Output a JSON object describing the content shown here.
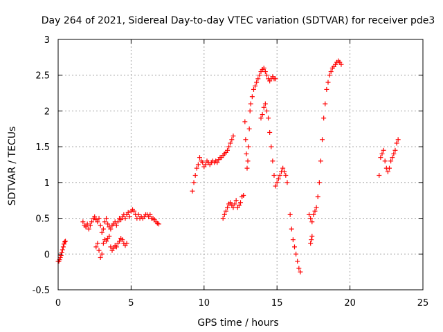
{
  "chart_data": {
    "type": "scatter",
    "title": "Day 264 of 2021, Sidereal Day-to-day VTEC variation (SDTVAR) for receiver pde3",
    "xlabel": "GPS time / hours",
    "ylabel": "SDTVAR / TECUs",
    "xlim": [
      0,
      25
    ],
    "ylim": [
      -0.5,
      3
    ],
    "xticks": [
      "0",
      "5",
      "10",
      "15",
      "20",
      "25"
    ],
    "xtick_values": [
      0,
      5,
      10,
      15,
      20,
      25
    ],
    "yticks": [
      "-0.5",
      "0",
      "0.5",
      "1",
      "1.5",
      "2",
      "2.5",
      "3"
    ],
    "ytick_values": [
      -0.5,
      0,
      0.5,
      1,
      1.5,
      2,
      2.5,
      3
    ],
    "grid": true,
    "marker": "+",
    "color": "#ff0000",
    "series": [
      {
        "name": "seg1",
        "x": [
          0.0,
          0.05,
          0.1,
          0.15,
          0.2,
          0.25,
          0.3,
          0.35,
          0.4,
          0.45,
          0.5
        ],
        "y": [
          -0.1,
          -0.1,
          -0.08,
          -0.05,
          -0.02,
          0.02,
          0.06,
          0.1,
          0.14,
          0.17,
          0.18
        ]
      },
      {
        "name": "seg2",
        "x": [
          1.7,
          1.8,
          1.9,
          2.0,
          2.1,
          2.2,
          2.3,
          2.4,
          2.5,
          2.6,
          2.7,
          2.8,
          2.9,
          3.0,
          3.1,
          3.2,
          3.3,
          3.4,
          3.5,
          3.6,
          3.7,
          3.8,
          3.9,
          4.0,
          4.1,
          4.2,
          4.3,
          4.4,
          4.5,
          4.6,
          4.7,
          4.8,
          4.9,
          5.0,
          5.1,
          5.2,
          5.3,
          5.4,
          5.5,
          5.6,
          5.7,
          5.8,
          5.9,
          6.0,
          6.1,
          6.2,
          6.3,
          6.4,
          6.5,
          6.6,
          6.7,
          6.8,
          6.9
        ],
        "y": [
          0.45,
          0.4,
          0.38,
          0.42,
          0.35,
          0.4,
          0.45,
          0.5,
          0.52,
          0.48,
          0.45,
          0.5,
          0.4,
          0.3,
          0.35,
          0.45,
          0.5,
          0.42,
          0.38,
          0.35,
          0.4,
          0.42,
          0.45,
          0.4,
          0.45,
          0.5,
          0.48,
          0.52,
          0.55,
          0.5,
          0.55,
          0.58,
          0.52,
          0.6,
          0.62,
          0.6,
          0.55,
          0.5,
          0.55,
          0.5,
          0.52,
          0.5,
          0.52,
          0.55,
          0.55,
          0.52,
          0.55,
          0.5,
          0.5,
          0.48,
          0.45,
          0.43,
          0.42
        ]
      },
      {
        "name": "seg3",
        "x": [
          2.6,
          2.7,
          2.8,
          2.9,
          3.0,
          3.1,
          3.2,
          3.3,
          3.4,
          3.5,
          3.6,
          3.7,
          3.8,
          3.9,
          4.0,
          4.1,
          4.2,
          4.3,
          4.4,
          4.5,
          4.6,
          4.7
        ],
        "y": [
          0.1,
          0.15,
          0.05,
          -0.05,
          0.0,
          0.15,
          0.2,
          0.18,
          0.22,
          0.25,
          0.1,
          0.05,
          0.08,
          0.12,
          0.1,
          0.15,
          0.18,
          0.22,
          0.2,
          0.15,
          0.12,
          0.15
        ]
      },
      {
        "name": "seg4",
        "x": [
          9.2,
          9.3,
          9.4,
          9.5,
          9.6,
          9.7,
          9.8,
          9.9,
          10.0,
          10.1,
          10.2,
          10.3,
          10.4,
          10.5,
          10.6,
          10.7,
          10.8,
          10.9,
          11.0,
          11.1,
          11.2,
          11.3,
          11.4,
          11.5,
          11.6,
          11.7,
          11.8,
          11.9,
          12.0
        ],
        "y": [
          0.88,
          1.0,
          1.1,
          1.2,
          1.25,
          1.35,
          1.3,
          1.28,
          1.22,
          1.25,
          1.3,
          1.28,
          1.25,
          1.28,
          1.3,
          1.28,
          1.3,
          1.28,
          1.32,
          1.35,
          1.35,
          1.38,
          1.4,
          1.42,
          1.45,
          1.5,
          1.55,
          1.6,
          1.65
        ]
      },
      {
        "name": "seg5",
        "x": [
          11.3,
          11.4,
          11.5,
          11.6,
          11.7,
          11.8,
          11.9,
          12.0,
          12.1,
          12.2,
          12.3,
          12.4,
          12.5,
          12.6,
          12.7
        ],
        "y": [
          0.5,
          0.55,
          0.6,
          0.65,
          0.7,
          0.72,
          0.68,
          0.65,
          0.7,
          0.75,
          0.65,
          0.68,
          0.72,
          0.8,
          0.82
        ]
      },
      {
        "name": "seg6",
        "x": [
          12.8,
          12.85,
          12.9,
          12.95,
          13.0,
          13.05,
          13.1,
          13.15,
          13.2,
          13.3,
          13.4,
          13.5,
          13.6,
          13.7,
          13.8,
          13.9,
          14.0,
          14.1,
          14.2,
          14.3,
          14.4,
          14.5,
          14.6,
          14.7,
          14.8,
          14.9
        ],
        "y": [
          1.85,
          1.6,
          1.4,
          1.2,
          1.3,
          1.5,
          1.75,
          2.0,
          2.1,
          2.2,
          2.3,
          2.35,
          2.4,
          2.45,
          2.5,
          2.55,
          2.58,
          2.6,
          2.55,
          2.5,
          2.45,
          2.42,
          2.45,
          2.48,
          2.45,
          2.45
        ]
      },
      {
        "name": "seg7",
        "x": [
          13.9,
          14.0,
          14.1,
          14.2,
          14.3,
          14.4,
          14.5,
          14.6,
          14.7,
          14.8,
          14.9,
          15.0,
          15.1,
          15.2,
          15.3,
          15.4,
          15.5,
          15.6,
          15.7
        ],
        "y": [
          1.9,
          1.95,
          2.05,
          2.1,
          2.0,
          1.9,
          1.7,
          1.5,
          1.3,
          1.1,
          0.95,
          1.0,
          1.05,
          1.1,
          1.15,
          1.2,
          1.15,
          1.1,
          1.0
        ]
      },
      {
        "name": "seg8",
        "x": [
          15.9,
          16.0,
          16.1,
          16.2,
          16.3,
          16.4,
          16.5,
          16.6
        ],
        "y": [
          0.55,
          0.35,
          0.2,
          0.1,
          0.0,
          -0.1,
          -0.2,
          -0.25
        ]
      },
      {
        "name": "seg9",
        "x": [
          17.2,
          17.3,
          17.4,
          17.5,
          17.6,
          17.7,
          17.8,
          17.9,
          18.0,
          18.1,
          18.2,
          18.3,
          18.4,
          18.5,
          18.6,
          18.7,
          18.8,
          18.9,
          19.0,
          19.1,
          19.2,
          19.3,
          19.4
        ],
        "y": [
          0.55,
          0.5,
          0.45,
          0.55,
          0.6,
          0.65,
          0.8,
          1.0,
          1.3,
          1.6,
          1.9,
          2.1,
          2.3,
          2.4,
          2.5,
          2.55,
          2.6,
          2.62,
          2.65,
          2.68,
          2.7,
          2.68,
          2.65
        ]
      },
      {
        "name": "seg10",
        "x": [
          17.3,
          17.35,
          17.4
        ],
        "y": [
          0.15,
          0.2,
          0.25
        ]
      },
      {
        "name": "seg11",
        "x": [
          22.0,
          22.1,
          22.2,
          22.3,
          22.4,
          22.5,
          22.6,
          22.7,
          22.8,
          22.9,
          23.0,
          23.1,
          23.2,
          23.3
        ],
        "y": [
          1.1,
          1.35,
          1.4,
          1.45,
          1.3,
          1.2,
          1.15,
          1.2,
          1.3,
          1.35,
          1.4,
          1.45,
          1.55,
          1.6
        ]
      }
    ]
  }
}
